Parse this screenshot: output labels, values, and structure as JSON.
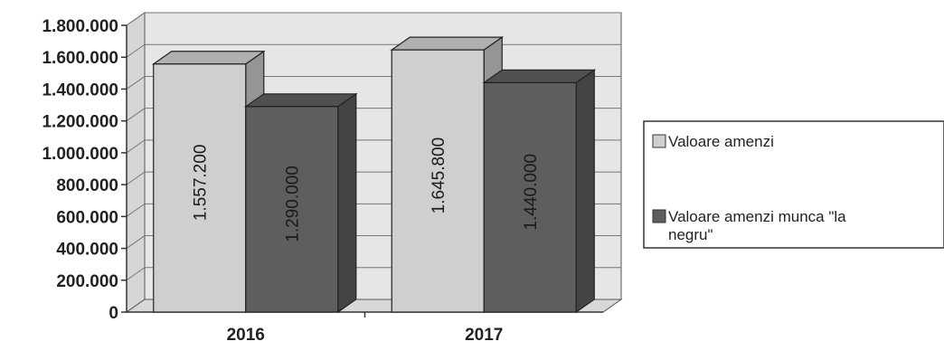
{
  "chart_data": {
    "type": "bar",
    "style": "3d-clustered-column",
    "categories": [
      "2016",
      "2017"
    ],
    "series": [
      {
        "name": "Valoare amenzi",
        "values": [
          1557200,
          1645800
        ],
        "labels": [
          "1.557.200",
          "1.645.800"
        ],
        "color": "#cfcfcf"
      },
      {
        "name": "Valoare amenzi munca \"la negru\"",
        "values": [
          1290000,
          1440000
        ],
        "labels": [
          "1.290.000",
          "1.440.000"
        ],
        "color": "#5e5e5e"
      }
    ],
    "ylim": [
      0,
      1800000
    ],
    "yticks": [
      0,
      200000,
      400000,
      600000,
      800000,
      1000000,
      1200000,
      1400000,
      1600000,
      1800000
    ],
    "ytick_labels": [
      "0",
      "200.000",
      "400.000",
      "600.000",
      "800.000",
      "1.000.000",
      "1.200.000",
      "1.400.000",
      "1.600.000",
      "1.800.000"
    ],
    "legend": {
      "position": "right",
      "items": [
        "Valoare amenzi",
        "Valoare amenzi munca \"la",
        "negru\""
      ]
    },
    "grid": true,
    "wall_color": "#e6e6e6",
    "floor_color": "#d8d8d8"
  }
}
